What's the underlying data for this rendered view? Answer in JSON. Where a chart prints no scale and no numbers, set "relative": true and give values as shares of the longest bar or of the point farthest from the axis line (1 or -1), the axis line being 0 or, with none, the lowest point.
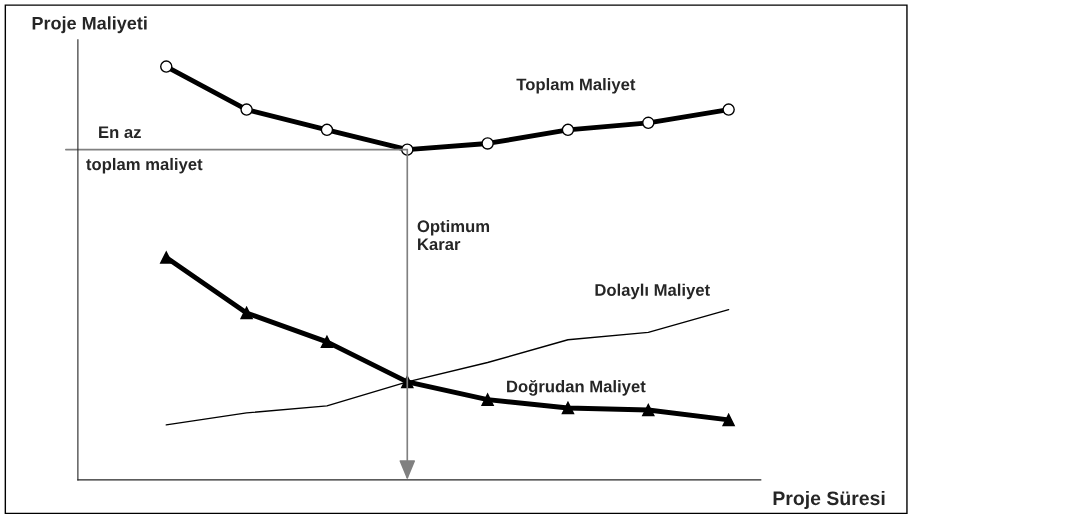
{
  "chart_data": {
    "type": "line",
    "relative": true,
    "xlabel": "Proje Süresi",
    "ylabel": "Proje Maliyeti",
    "categories": [
      null,
      null,
      null,
      null,
      null,
      null,
      null,
      null
    ],
    "grid": false,
    "series": [
      {
        "name": "Toplam Maliyet",
        "color": "#000000",
        "marker": "circle",
        "values": [
          1,
          0.896,
          0.847,
          0.799,
          0.814,
          0.847,
          0.864,
          0.896
        ]
      },
      {
        "name": "Dolaylı Maliyet",
        "color": "#000000",
        "marker": "none",
        "values": [
          0.133,
          0.162,
          0.179,
          0.237,
          0.284,
          0.339,
          0.357,
          0.412
        ]
      },
      {
        "name": "Doğrudan Maliyet",
        "color": "#000000",
        "marker": "triangle",
        "values": [
          0.538,
          0.404,
          0.334,
          0.237,
          0.194,
          0.174,
          0.169,
          0.145
        ]
      }
    ],
    "ref_lines": [
      {
        "axis": "y",
        "value": 0.799,
        "label": "En az\ntoplam maliyet",
        "color": "#808080"
      }
    ],
    "annotations": [
      "Optimum\nKarar"
    ]
  }
}
